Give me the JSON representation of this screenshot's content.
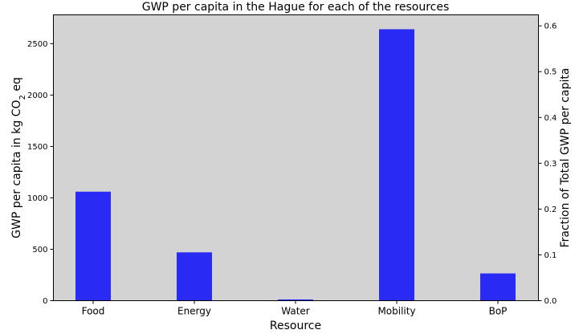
{
  "chart_data": {
    "type": "bar",
    "title": "GWP per capita in the Hague for each of the resources",
    "xlabel": "Resource",
    "ylabel": {
      "prefix": "GWP per capita in kg CO",
      "subscript": "2",
      "suffix": " eq"
    },
    "y2label": "Fraction of Total GWP per capita",
    "categories": [
      "Food",
      "Energy",
      "Water",
      "Mobility",
      "BoP"
    ],
    "values": [
      1060,
      470,
      12,
      2640,
      265
    ],
    "ylim": [
      0,
      2780
    ],
    "yticks": [
      0,
      500,
      1000,
      1500,
      2000,
      2500
    ],
    "y2lim": [
      0,
      0.624
    ],
    "y2ticks": [
      0.0,
      0.1,
      0.2,
      0.3,
      0.4,
      0.5,
      0.6
    ],
    "y2tick_labels": [
      "0.0",
      "0.1",
      "0.2",
      "0.3",
      "0.4",
      "0.5",
      "0.6"
    ],
    "grid": false,
    "colors": {
      "bar": "#2a2af5",
      "plot_background": "#d3d3d3",
      "axis": "#000000"
    }
  }
}
